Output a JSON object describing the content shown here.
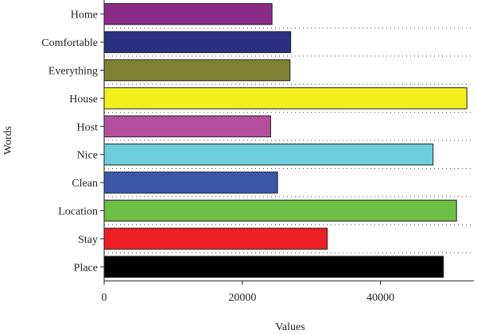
{
  "chart_data": {
    "type": "bar",
    "orientation": "horizontal",
    "xlabel": "Values",
    "ylabel": "Words",
    "xlim": [
      0,
      53500
    ],
    "xticks": [
      0,
      20000,
      40000
    ],
    "grid": "dotted horizontal lines between categories",
    "categories": [
      "Home",
      "Comfortable",
      "Everything",
      "House",
      "Host",
      "Nice",
      "Clean",
      "Location",
      "Stay",
      "Place"
    ],
    "values": [
      24300,
      27000,
      26900,
      52500,
      24100,
      47600,
      25100,
      51000,
      32300,
      49100
    ],
    "colors": [
      "#8a2b86",
      "#2a2f7f",
      "#7f8135",
      "#f2ef1d",
      "#b44fa0",
      "#6dcfdd",
      "#3a56a9",
      "#6cbe44",
      "#ee1f26",
      "#000000"
    ]
  }
}
